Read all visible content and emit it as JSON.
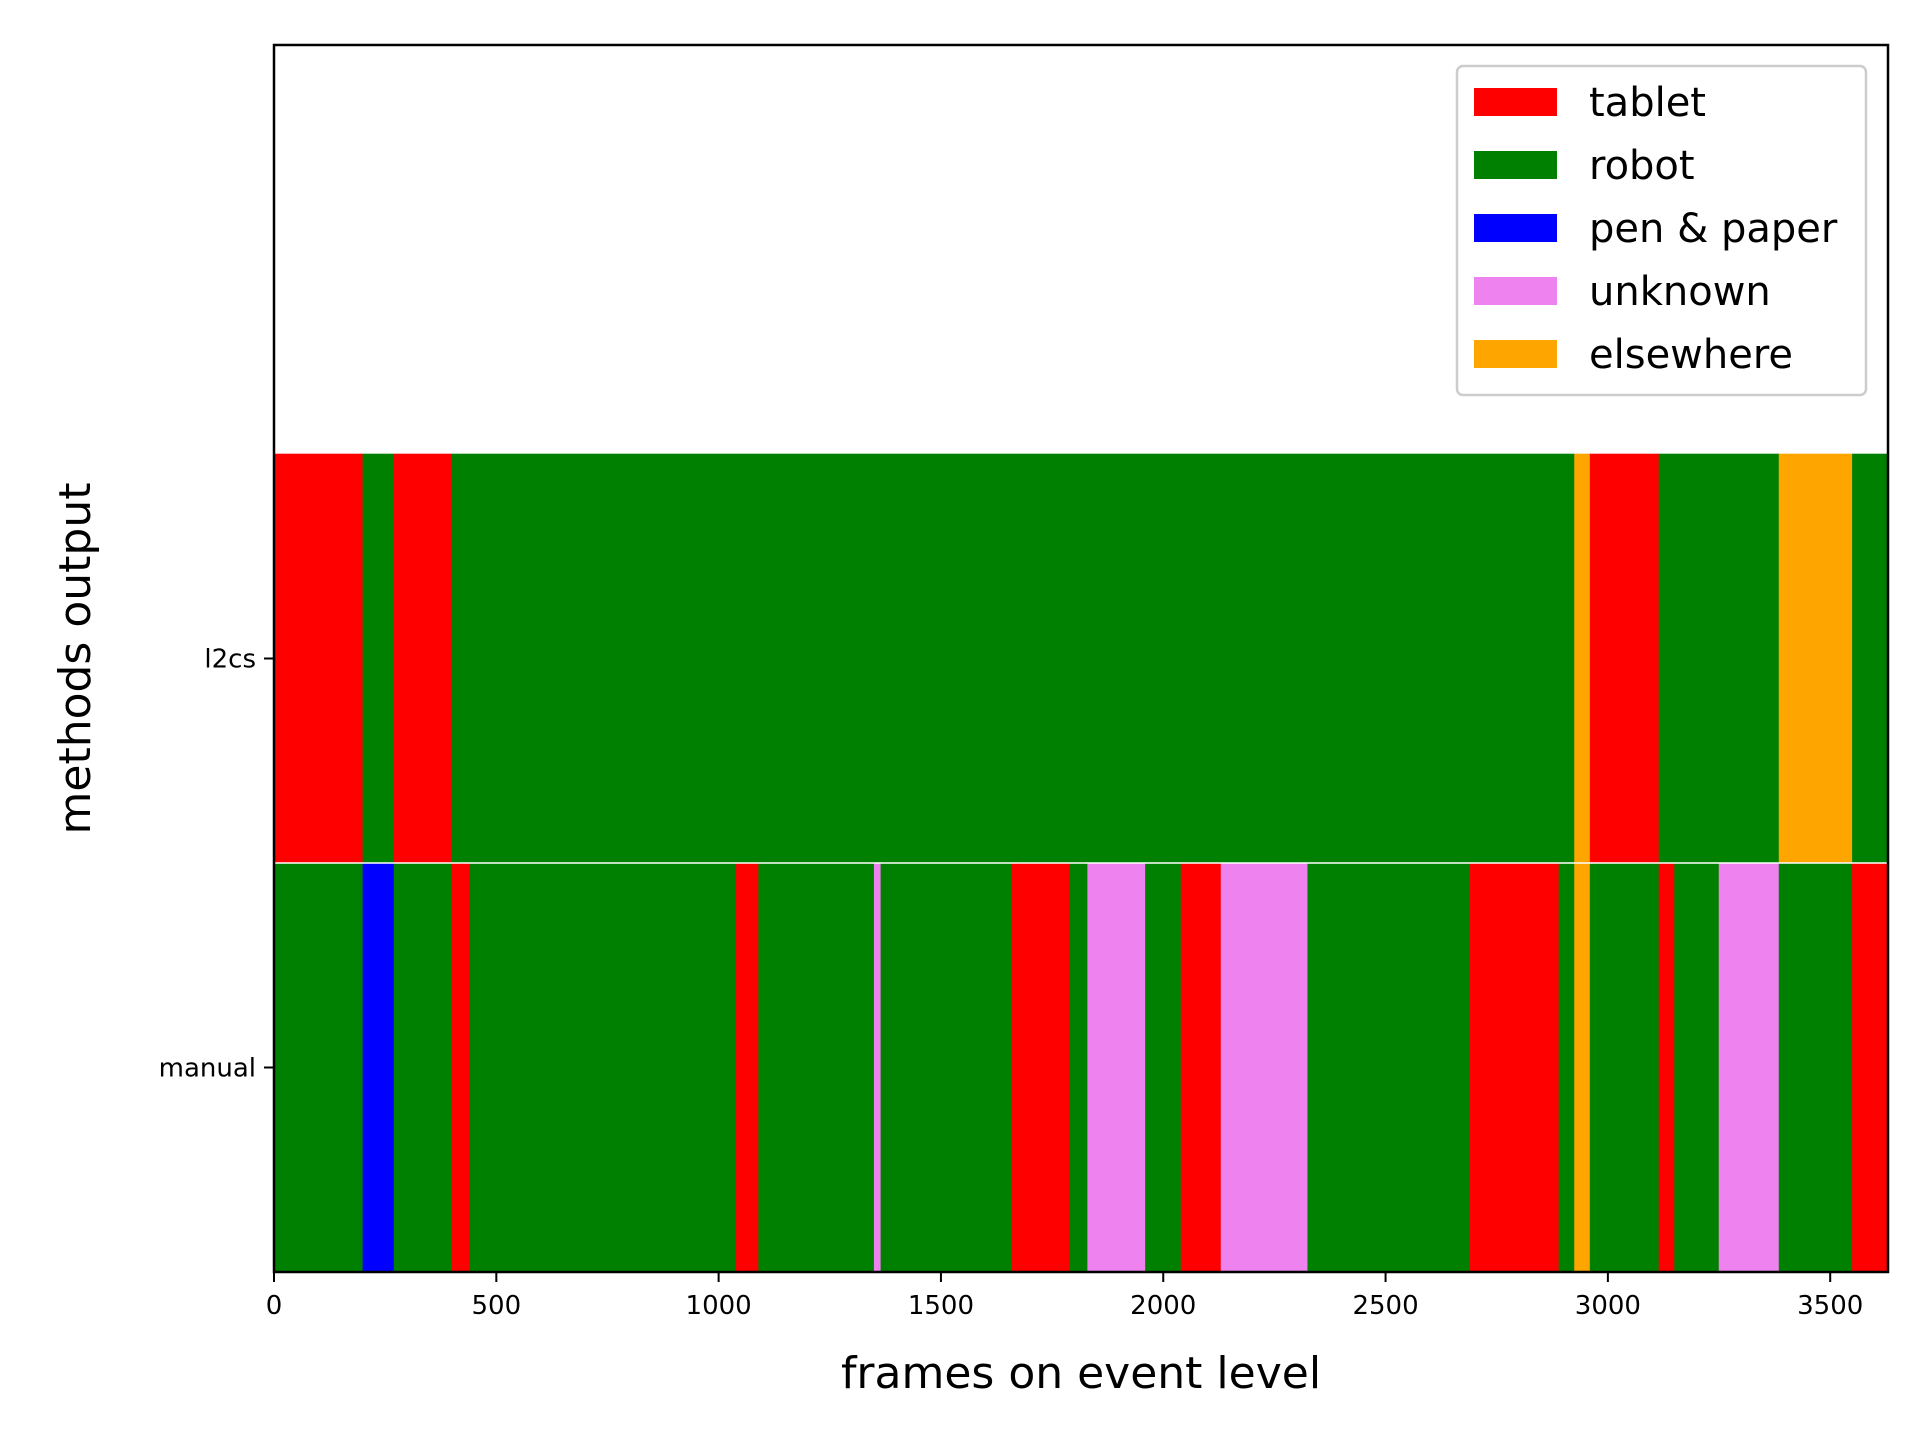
{
  "chart_data": {
    "type": "bar",
    "orientation": "horizontal-stacked-timeline",
    "xlabel": "frames on event level",
    "ylabel": "methods output",
    "xlim": [
      0,
      3630
    ],
    "x_ticks": [
      0,
      500,
      1000,
      1500,
      2000,
      2500,
      3000,
      3500
    ],
    "categories": [
      "manual",
      "l2cs"
    ],
    "ylim": [
      -0.5,
      2.5
    ],
    "legend": {
      "placement": "upper right",
      "entries": [
        {
          "label": "tablet",
          "color": "#ff0000"
        },
        {
          "label": "robot",
          "color": "#008000"
        },
        {
          "label": "pen & paper",
          "color": "#0000ff"
        },
        {
          "label": "unknown",
          "color": "#ee82ee"
        },
        {
          "label": "elsewhere",
          "color": "#ffa500"
        }
      ]
    },
    "series": [
      {
        "category": "l2cs",
        "segments": [
          {
            "start": 0,
            "end": 200,
            "label": "tablet"
          },
          {
            "start": 200,
            "end": 270,
            "label": "robot"
          },
          {
            "start": 270,
            "end": 400,
            "label": "tablet"
          },
          {
            "start": 400,
            "end": 2925,
            "label": "robot"
          },
          {
            "start": 2925,
            "end": 2960,
            "label": "elsewhere"
          },
          {
            "start": 2960,
            "end": 3115,
            "label": "tablet"
          },
          {
            "start": 3115,
            "end": 3385,
            "label": "robot"
          },
          {
            "start": 3385,
            "end": 3550,
            "label": "elsewhere"
          },
          {
            "start": 3550,
            "end": 3630,
            "label": "robot"
          }
        ]
      },
      {
        "category": "manual",
        "segments": [
          {
            "start": 0,
            "end": 200,
            "label": "robot"
          },
          {
            "start": 200,
            "end": 270,
            "label": "pen & paper"
          },
          {
            "start": 270,
            "end": 400,
            "label": "robot"
          },
          {
            "start": 400,
            "end": 440,
            "label": "tablet"
          },
          {
            "start": 440,
            "end": 1040,
            "label": "robot"
          },
          {
            "start": 1040,
            "end": 1090,
            "label": "tablet"
          },
          {
            "start": 1090,
            "end": 1350,
            "label": "robot"
          },
          {
            "start": 1350,
            "end": 1365,
            "label": "unknown"
          },
          {
            "start": 1365,
            "end": 1660,
            "label": "robot"
          },
          {
            "start": 1660,
            "end": 1790,
            "label": "tablet"
          },
          {
            "start": 1790,
            "end": 1830,
            "label": "robot"
          },
          {
            "start": 1830,
            "end": 1960,
            "label": "unknown"
          },
          {
            "start": 1960,
            "end": 2040,
            "label": "robot"
          },
          {
            "start": 2040,
            "end": 2130,
            "label": "tablet"
          },
          {
            "start": 2130,
            "end": 2325,
            "label": "unknown"
          },
          {
            "start": 2325,
            "end": 2690,
            "label": "robot"
          },
          {
            "start": 2690,
            "end": 2890,
            "label": "tablet"
          },
          {
            "start": 2890,
            "end": 2925,
            "label": "robot"
          },
          {
            "start": 2925,
            "end": 2960,
            "label": "elsewhere"
          },
          {
            "start": 2960,
            "end": 3115,
            "label": "robot"
          },
          {
            "start": 3115,
            "end": 3150,
            "label": "tablet"
          },
          {
            "start": 3150,
            "end": 3250,
            "label": "robot"
          },
          {
            "start": 3250,
            "end": 3385,
            "label": "unknown"
          },
          {
            "start": 3385,
            "end": 3550,
            "label": "robot"
          },
          {
            "start": 3550,
            "end": 3630,
            "label": "tablet"
          }
        ]
      }
    ]
  }
}
